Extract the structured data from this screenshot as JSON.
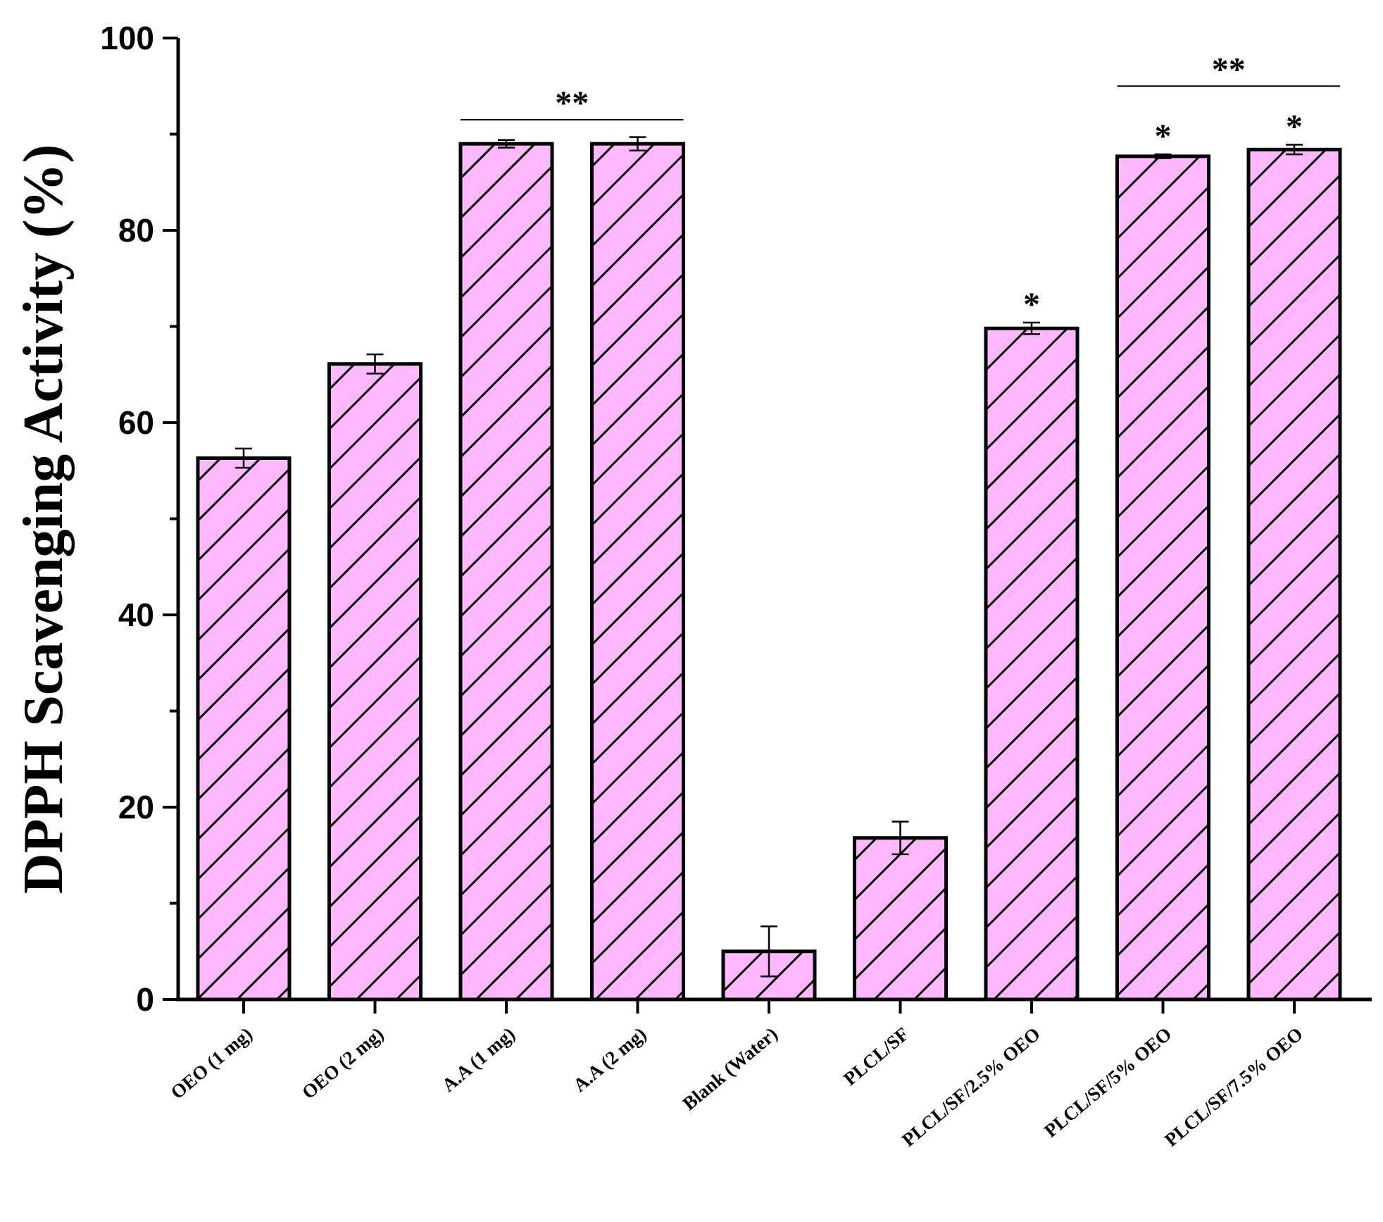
{
  "chart_data": {
    "type": "bar",
    "title": "",
    "xlabel": "",
    "ylabel": "DPPH Scavenging Activity (%)",
    "ylim": [
      0,
      100
    ],
    "yticks": [
      0,
      20,
      40,
      60,
      80,
      100
    ],
    "grid": false,
    "legend": "none",
    "categories": [
      "OEO (1 mg)",
      "OEO (2 mg)",
      "A.A (1 mg)",
      "A.A (2 mg)",
      "Blank (Water)",
      "PLCL/SF",
      "PLCL/SF/2.5% OEO",
      "PLCL/SF/5% OEO",
      "PLCL/SF/7.5% OEO"
    ],
    "values": [
      56.3,
      66.1,
      89.0,
      89.0,
      5.0,
      16.8,
      69.8,
      87.7,
      88.4
    ],
    "errors": [
      1.0,
      1.0,
      0.4,
      0.7,
      2.6,
      1.7,
      0.6,
      0.2,
      0.5
    ],
    "fill_color": "#ffb7ff",
    "hatch": "diagonal",
    "annotations": [
      {
        "text": "**",
        "type": "bracket",
        "from": "A.A (1 mg)",
        "to": "A.A (2 mg)",
        "y": 91.5
      },
      {
        "text": "**",
        "type": "bracket",
        "from": "PLCL/SF/5% OEO",
        "to": "PLCL/SF/7.5% OEO",
        "y": 95.0
      },
      {
        "text": "*",
        "type": "bar",
        "category": "PLCL/SF/2.5% OEO"
      },
      {
        "text": "*",
        "type": "bar",
        "category": "PLCL/SF/5% OEO"
      },
      {
        "text": "*",
        "type": "bar",
        "category": "PLCL/SF/7.5% OEO"
      }
    ]
  }
}
